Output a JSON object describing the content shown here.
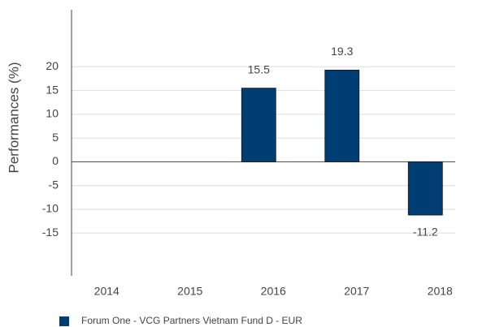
{
  "chart_data": {
    "type": "bar",
    "y_label": "Performances (%)",
    "categories": [
      "2014",
      "2015",
      "2016",
      "2017",
      "2018"
    ],
    "series": [
      {
        "name": "Forum One - VCG Partners Vietnam Fund D - EUR",
        "color": "#003d73",
        "values": [
          null,
          null,
          15.5,
          19.3,
          -11.2
        ]
      }
    ],
    "ylim": [
      -24,
      32
    ],
    "yticks": [
      -15,
      -10,
      -5,
      0,
      5,
      10,
      15,
      20
    ],
    "grid": true
  }
}
